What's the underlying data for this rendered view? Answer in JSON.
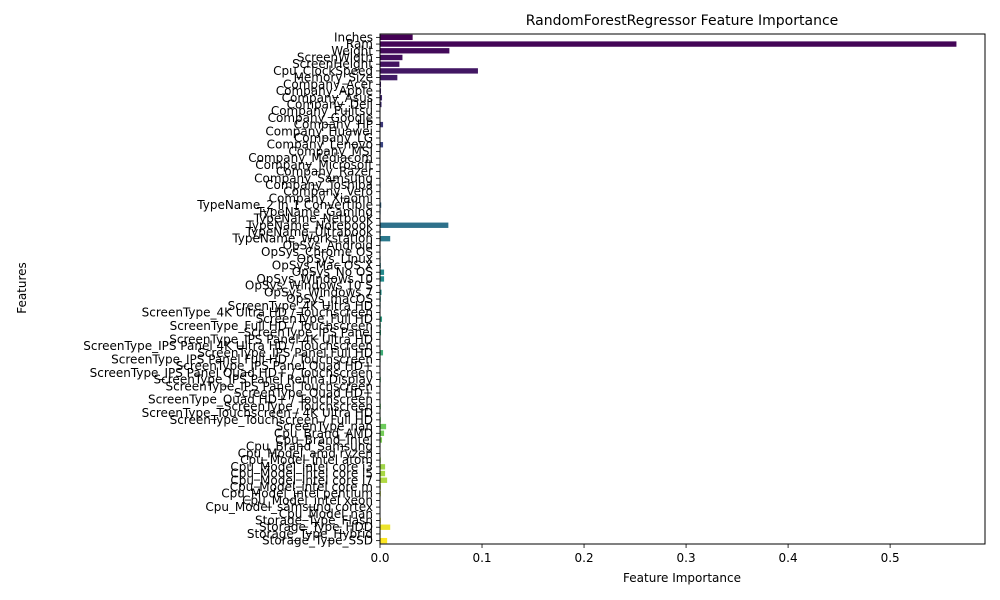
{
  "chart_data": {
    "type": "bar",
    "orientation": "horizontal",
    "title": "RandomForestRegressor Feature Importance",
    "xlabel": "Feature Importance",
    "ylabel": "Features",
    "xlim": [
      0,
      0.593
    ],
    "xticks": [
      0.0,
      0.1,
      0.2,
      0.3,
      0.4,
      0.5
    ],
    "xtick_labels": [
      "0.0",
      "0.1",
      "0.2",
      "0.3",
      "0.4",
      "0.5"
    ],
    "grid": false,
    "palette": "viridis",
    "categories": [
      "Inches",
      "Ram",
      "Weight",
      "ScreenWidth",
      "ScreenHeight",
      "Cpu_ClockSpeed",
      "Memory_Size",
      "Company_Acer",
      "Company_Apple",
      "Company_Asus",
      "Company_Dell",
      "Company_Fujitsu",
      "Company_Google",
      "Company_HP",
      "Company_Huawei",
      "Company_LG",
      "Company_Lenovo",
      "Company_MSI",
      "Company_Mediacom",
      "Company_Microsoft",
      "Company_Razer",
      "Company_Samsung",
      "Company_Toshiba",
      "Company_Vero",
      "Company_Xiaomi",
      "TypeName_2 in 1 Convertible",
      "TypeName_Gaming",
      "TypeName_Netbook",
      "TypeName_Notebook",
      "TypeName_Ultrabook",
      "TypeName_Workstation",
      "OpSys_Android",
      "OpSys_Chrome OS",
      "OpSys_Linux",
      "OpSys_Mac OS X",
      "OpSys_No OS",
      "OpSys_Windows 10",
      "OpSys_Windows 10 S",
      "OpSys_Windows 7",
      "OpSys_macOS",
      "ScreenType_4K Ultra HD",
      "ScreenType_4K Ultra HD / Touchscreen",
      "ScreenType_Full HD",
      "ScreenType_Full HD / Touchscreen",
      "ScreenType_IPS Panel",
      "ScreenType_IPS Panel 4K Ultra HD",
      "ScreenType_IPS Panel 4K Ultra HD / Touchscreen",
      "ScreenType_IPS Panel Full HD",
      "ScreenType_IPS Panel Full HD / Touchscreen",
      "ScreenType_IPS Panel Quad HD+",
      "ScreenType_IPS Panel Quad HD+ / Touchscreen",
      "ScreenType_IPS Panel Retina Display",
      "ScreenType_IPS Panel Touchscreen",
      "ScreenType_Quad HD+",
      "ScreenType_Quad HD+ / Touchscreen",
      "ScreenType_Touchscreen",
      "ScreenType_Touchscreen / 4K Ultra HD",
      "ScreenType_Touchscreen / Full HD",
      "ScreenType_nan",
      "Cpu_Brand_AMD",
      "Cpu_Brand_Intel",
      "Cpu_Brand_Samsung",
      "Cpu_Model_amd ryzen",
      "Cpu_Model_intel atom",
      "Cpu_Model_intel core i3",
      "Cpu_Model_intel core i5",
      "Cpu_Model_intel core i7",
      "Cpu_Model_intel core m",
      "Cpu_Model_intel pentium",
      "Cpu_Model_intel xeon",
      "Cpu_Model_samsung cortex",
      "Cpu_Model_nan",
      "Storage_Type_Flash",
      "Storage_Type_HDD",
      "Storage_Type_Hybrid",
      "Storage_Type_SSD"
    ],
    "values": [
      0.032,
      0.565,
      0.068,
      0.022,
      0.019,
      0.096,
      0.017,
      0.001,
      0.001,
      0.002,
      0.0015,
      0.0005,
      0.0002,
      0.003,
      0.0003,
      0.0001,
      0.003,
      0.0005,
      0.0001,
      0.0001,
      0.0002,
      0.0004,
      0.0006,
      0.0001,
      0.0001,
      0.0012,
      0.0006,
      0.0005,
      0.067,
      0.0008,
      0.01,
      0.0001,
      0.0003,
      0.0006,
      0.0008,
      0.004,
      0.004,
      0.0002,
      0.0015,
      0.0008,
      0.0006,
      0.0002,
      0.002,
      0.0008,
      0.001,
      0.0002,
      0.0002,
      0.003,
      0.0006,
      0.0004,
      0.0001,
      0.0008,
      0.0003,
      0.0002,
      0.0002,
      0.0008,
      0.0002,
      0.0008,
      0.006,
      0.004,
      0.002,
      0.0001,
      0.0004,
      0.0008,
      0.005,
      0.005,
      0.007,
      0.0008,
      0.0008,
      0.0004,
      0.0001,
      0.0003,
      0.0008,
      0.01,
      0.0006,
      0.007
    ]
  }
}
